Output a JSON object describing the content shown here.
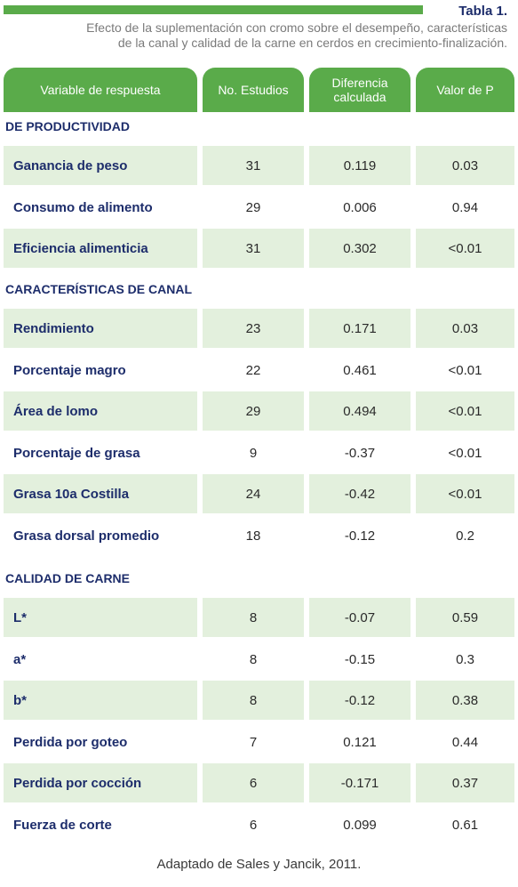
{
  "header": {
    "table_label": "Tabla 1.",
    "caption_line1": "Efecto de la suplementación con cromo sobre el desempeño, características",
    "caption_line2": "de la canal y calidad de la carne en cerdos en crecimiento-finalización."
  },
  "colors": {
    "accent_green": "#5aab4a",
    "row_green": "#e3f0dd",
    "navy": "#1d2d6b"
  },
  "columns": [
    "Variable de respuesta",
    "No. Estudios",
    "Diferencia calculada",
    "Valor de P"
  ],
  "sections": [
    {
      "title": "DE PRODUCTIVIDAD",
      "rows": [
        [
          "Ganancia de peso",
          "31",
          "0.119",
          "0.03"
        ],
        [
          "Consumo de alimento",
          "29",
          "0.006",
          "0.94"
        ],
        [
          "Eficiencia alimenticia",
          "31",
          "0.302",
          "<0.01"
        ]
      ]
    },
    {
      "title": "CARACTERÍSTICAS DE CANAL",
      "rows": [
        [
          "Rendimiento",
          "23",
          "0.171",
          "0.03"
        ],
        [
          "Porcentaje magro",
          "22",
          "0.461",
          "<0.01"
        ],
        [
          "Área de lomo",
          "29",
          "0.494",
          "<0.01"
        ],
        [
          "Porcentaje de grasa",
          "9",
          "-0.37",
          "<0.01"
        ],
        [
          "Grasa 10a Costilla",
          "24",
          "-0.42",
          "<0.01"
        ],
        [
          "Grasa dorsal promedio",
          "18",
          "-0.12",
          "0.2"
        ]
      ]
    },
    {
      "title": "CALIDAD DE CARNE",
      "rows": [
        [
          "L*",
          "8",
          "-0.07",
          "0.59"
        ],
        [
          "a*",
          "8",
          "-0.15",
          "0.3"
        ],
        [
          "b*",
          "8",
          "-0.12",
          "0.38"
        ],
        [
          "Perdida por goteo",
          "7",
          "0.121",
          "0.44"
        ],
        [
          "Perdida por cocción",
          "6",
          "-0.171",
          "0.37"
        ],
        [
          "Fuerza de corte",
          "6",
          "0.099",
          "0.61"
        ]
      ]
    }
  ],
  "footer": "Adaptado de Sales y Jancik, 2011."
}
